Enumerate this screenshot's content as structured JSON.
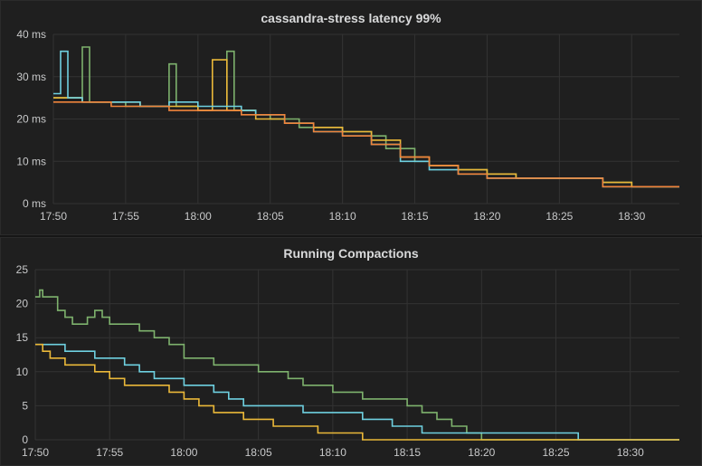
{
  "chart_data": [
    {
      "type": "line",
      "title": "cassandra-stress latency 99%",
      "x_ticks": [
        "17:50",
        "17:55",
        "18:00",
        "18:05",
        "18:10",
        "18:15",
        "18:20",
        "18:25",
        "18:30"
      ],
      "x_range_minutes": [
        0,
        43.3
      ],
      "y_ticks": [
        "0 ms",
        "10 ms",
        "20 ms",
        "30 ms",
        "40 ms"
      ],
      "ylim": [
        0,
        40
      ],
      "grid": true,
      "series": [
        {
          "color": "#7eb26d",
          "x": [
            0,
            1,
            2,
            2.5,
            3,
            5,
            7,
            8,
            8.5,
            9,
            10,
            12,
            12.5,
            13,
            14,
            15,
            17,
            18,
            20,
            22,
            23,
            25,
            26,
            28,
            30,
            32,
            33,
            35,
            36,
            38,
            40,
            41,
            42,
            43.3
          ],
          "y": [
            25,
            25,
            37,
            24,
            24,
            23,
            23,
            33,
            23,
            23,
            22,
            36,
            22,
            22,
            21,
            20,
            18,
            18,
            17,
            16,
            13,
            10,
            9,
            8,
            7,
            6,
            6,
            6,
            6,
            5,
            4,
            4,
            4,
            4
          ]
        },
        {
          "color": "#eab839",
          "x": [
            0,
            2,
            4,
            6,
            8,
            9,
            10,
            11,
            12,
            13,
            14,
            16,
            18,
            20,
            22,
            24,
            26,
            28,
            30,
            32,
            34,
            36,
            37,
            38,
            40,
            42,
            43.3
          ],
          "y": [
            25,
            24,
            24,
            23,
            23,
            23,
            22,
            34,
            22,
            22,
            20,
            19,
            18,
            17,
            15,
            11,
            9,
            8,
            7,
            6,
            6,
            6,
            6,
            5,
            4,
            4,
            4
          ]
        },
        {
          "color": "#6ed0e0",
          "x": [
            0,
            0.5,
            1,
            1.5,
            2,
            4,
            6,
            8,
            10,
            12,
            13,
            14,
            16,
            18,
            20,
            22,
            24,
            26,
            28,
            30,
            32,
            34,
            35,
            36,
            38,
            40,
            42,
            43.3
          ],
          "y": [
            26,
            36,
            25,
            25,
            24,
            24,
            23,
            24,
            23,
            23,
            22,
            21,
            19,
            17,
            16,
            14,
            10,
            8,
            7,
            6,
            6,
            6,
            6,
            6,
            4,
            4,
            4,
            4
          ]
        },
        {
          "color": "#ef843c",
          "x": [
            0,
            2,
            4,
            6,
            8,
            10,
            12,
            13,
            14,
            16,
            18,
            20,
            22,
            24,
            26,
            28,
            30,
            32,
            34,
            36,
            37,
            38,
            40,
            42,
            43.3
          ],
          "y": [
            24,
            24,
            23,
            23,
            22,
            22,
            22,
            21,
            21,
            19,
            17,
            16,
            14,
            11,
            9,
            7,
            6,
            6,
            6,
            6,
            6,
            4,
            4,
            4,
            4
          ]
        }
      ]
    },
    {
      "type": "line",
      "title": "Running Compactions",
      "x_ticks": [
        "17:50",
        "17:55",
        "18:00",
        "18:05",
        "18:10",
        "18:15",
        "18:20",
        "18:25",
        "18:30"
      ],
      "x_range_minutes": [
        0,
        43.3
      ],
      "y_ticks": [
        "0",
        "5",
        "10",
        "15",
        "20",
        "25"
      ],
      "ylim": [
        0,
        25
      ],
      "grid": true,
      "series": [
        {
          "color": "#7eb26d",
          "x": [
            0,
            0.3,
            0.5,
            0.8,
            1,
            1.5,
            2,
            2.5,
            3,
            3.5,
            4,
            4.5,
            5,
            5.5,
            7,
            8,
            9,
            10,
            11,
            12,
            15,
            17,
            18,
            19,
            20,
            21,
            22,
            23,
            25,
            26,
            27,
            28,
            29,
            30,
            32,
            43.3
          ],
          "y": [
            21,
            22,
            21,
            21,
            21,
            19,
            18,
            17,
            17,
            18,
            19,
            18,
            17,
            17,
            16,
            15,
            14,
            12,
            12,
            11,
            10,
            9,
            8,
            8,
            7,
            7,
            6,
            6,
            5,
            4,
            3,
            2,
            1,
            0,
            0,
            0
          ]
        },
        {
          "color": "#6ed0e0",
          "x": [
            0,
            1,
            2,
            3,
            4,
            5,
            6,
            7,
            8,
            9,
            10,
            11,
            12,
            13,
            14,
            15,
            16,
            17,
            18,
            19,
            20,
            21,
            22,
            23,
            24,
            25,
            26,
            27,
            28,
            29,
            30,
            31,
            32,
            33,
            34,
            35,
            36,
            36.5,
            43.3
          ],
          "y": [
            14,
            14,
            13,
            13,
            12,
            12,
            11,
            10,
            9,
            9,
            8,
            8,
            7,
            6,
            5,
            5,
            5,
            5,
            4,
            4,
            4,
            4,
            3,
            3,
            2,
            2,
            1,
            1,
            1,
            1,
            1,
            1,
            1,
            1,
            1,
            1,
            1,
            0,
            0
          ]
        },
        {
          "color": "#eab839",
          "x": [
            0,
            0.5,
            1,
            2,
            3,
            4,
            5,
            6,
            7,
            8,
            9,
            10,
            11,
            12,
            13,
            14,
            15,
            16,
            17,
            18,
            19,
            20,
            21,
            22,
            23,
            24,
            25,
            43.3
          ],
          "y": [
            14,
            13,
            12,
            11,
            11,
            10,
            9,
            8,
            8,
            8,
            7,
            6,
            5,
            4,
            4,
            3,
            3,
            2,
            2,
            2,
            1,
            1,
            1,
            0,
            0,
            0,
            0,
            0
          ]
        }
      ]
    }
  ]
}
